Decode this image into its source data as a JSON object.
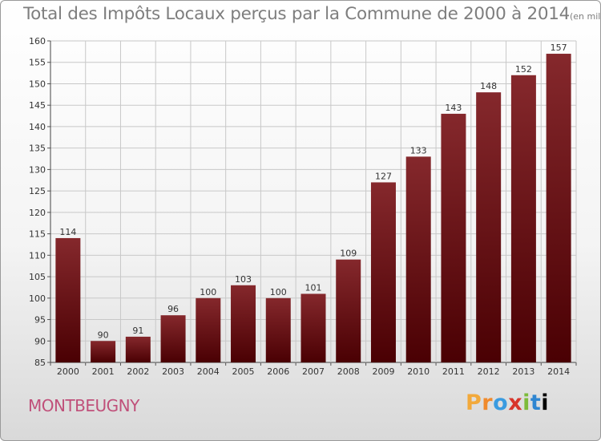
{
  "title": "Total des Impôts Locaux perçus par la Commune de 2000 à 2014",
  "title_unit": "(en milliers d'€)",
  "town": "MONTBEUGNY",
  "brand": [
    "P",
    "r",
    "o",
    "x",
    "i",
    "t",
    "i"
  ],
  "colors": {
    "bar": "#7a1a1e",
    "bar_dark": "#4a0003",
    "town": "#c0507a",
    "title": "#7e7e7e"
  },
  "chart_data": {
    "type": "bar",
    "title": "Total des Impôts Locaux perçus par la Commune de 2000 à 2014",
    "xlabel": "",
    "ylabel": "",
    "categories": [
      "2000",
      "2001",
      "2002",
      "2003",
      "2004",
      "2005",
      "2006",
      "2007",
      "2008",
      "2009",
      "2010",
      "2011",
      "2012",
      "2013",
      "2014"
    ],
    "values": [
      114,
      90,
      91,
      96,
      100,
      103,
      100,
      101,
      109,
      127,
      133,
      143,
      148,
      152,
      157
    ],
    "ylim": [
      85,
      160
    ],
    "yticks": [
      85,
      90,
      95,
      100,
      105,
      110,
      115,
      120,
      125,
      130,
      135,
      140,
      145,
      150,
      155,
      160
    ],
    "grid": true
  }
}
